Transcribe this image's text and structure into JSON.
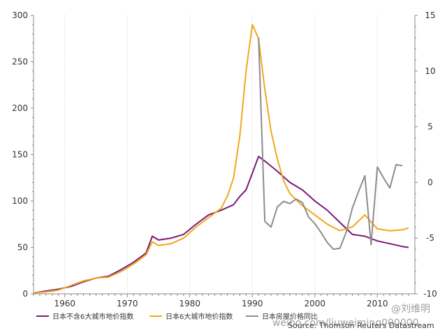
{
  "chart_data": {
    "type": "line",
    "title": "",
    "xlabel": "",
    "ylabel": "",
    "xlim": [
      1955,
      2016
    ],
    "ylim_left": [
      0,
      300
    ],
    "ylim_right": [
      -10,
      15
    ],
    "x_ticks": [
      "1960",
      "1970",
      "1980",
      "1990",
      "2000",
      "2010"
    ],
    "y_left_ticks": [
      "0",
      "50",
      "100",
      "150",
      "200",
      "250",
      "300"
    ],
    "y_right_ticks": [
      "-10",
      "-5",
      "0",
      "5",
      "10",
      "15"
    ],
    "grid": "vertical dotted",
    "legend_position": "bottom",
    "source": "Source: Thomson Reuters Datastream",
    "series": [
      {
        "name": "日本不含6大城市地价指数",
        "color": "#7a1a78",
        "axis": "left",
        "x": [
          1955,
          1957,
          1959,
          1961,
          1963,
          1965,
          1967,
          1969,
          1971,
          1973,
          1974,
          1975,
          1977,
          1979,
          1981,
          1983,
          1985,
          1987,
          1988,
          1989,
          1990,
          1991,
          1992,
          1994,
          1996,
          1998,
          2000,
          2002,
          2004,
          2006,
          2008,
          2010,
          2012,
          2014,
          2015
        ],
        "y": [
          1,
          3,
          5,
          8,
          13,
          17,
          19,
          26,
          34,
          44,
          62,
          58,
          60,
          64,
          75,
          85,
          90,
          96,
          105,
          112,
          130,
          148,
          143,
          132,
          120,
          112,
          100,
          90,
          77,
          64,
          62,
          57,
          54,
          51,
          50
        ]
      },
      {
        "name": "日本6大城市地价指数",
        "color": "#f0a81c",
        "axis": "left",
        "x": [
          1955,
          1957,
          1959,
          1961,
          1963,
          1965,
          1967,
          1969,
          1971,
          1973,
          1974,
          1975,
          1977,
          1979,
          1981,
          1983,
          1985,
          1986,
          1987,
          1988,
          1989,
          1990,
          1991,
          1992,
          1993,
          1994,
          1995,
          1996,
          1998,
          2000,
          2002,
          2004,
          2006,
          2008,
          2010,
          2012,
          2014,
          2015
        ],
        "y": [
          1,
          2,
          4,
          9,
          14,
          17,
          18,
          24,
          32,
          42,
          56,
          52,
          54,
          60,
          72,
          82,
          92,
          105,
          125,
          170,
          240,
          290,
          275,
          220,
          175,
          145,
          122,
          108,
          95,
          85,
          75,
          68,
          72,
          85,
          70,
          68,
          69,
          71
        ]
      },
      {
        "name": "日本房屋价格同比",
        "color": "#8c8c8c",
        "axis": "right",
        "x": [
          1991,
          1992,
          1993,
          1994,
          1995,
          1996,
          1997,
          1998,
          1999,
          2000,
          2001,
          2002,
          2003,
          2004,
          2005,
          2006,
          2007,
          2008,
          2009,
          2010,
          2011,
          2012,
          2013,
          2014
        ],
        "y": [
          13,
          -3.5,
          -4,
          -2.2,
          -1.7,
          -1.9,
          -1.5,
          -1.8,
          -3.1,
          -3.7,
          -4.5,
          -5.4,
          -6.0,
          -5.9,
          -4.5,
          -2.3,
          -0.8,
          0.6,
          -5.6,
          1.4,
          0.4,
          -0.5,
          1.6,
          1.5
        ]
      }
    ]
  },
  "watermark": "weibo.com/liuweiming000000",
  "watermark_handle": "@刘维明"
}
